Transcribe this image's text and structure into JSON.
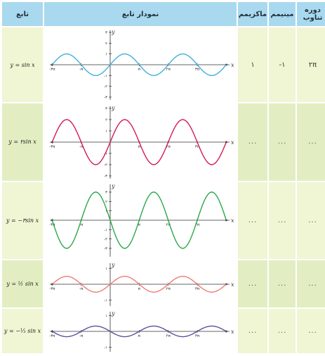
{
  "headers": {
    "func": "تابع",
    "graph": "نمودار تابع",
    "max": "ماکزیمم",
    "min": "مینیمم",
    "period": "دوره تناوب"
  },
  "axis": {
    "x_label": "x",
    "y_label": "y",
    "x_ticks": [
      "-۳π",
      "-π",
      "π",
      "۲π",
      "۳π"
    ],
    "y_ticks_row1": [
      "۳",
      "۲",
      "۱",
      "-۱",
      "-۲",
      "-۳"
    ],
    "y_ticks_row2": [
      "۳",
      "۲",
      "۱",
      "-۱",
      "-۲",
      "-۳"
    ],
    "y_ticks_row3": [
      "۳",
      "۲",
      "۱",
      "-۱",
      "-۲",
      "-۳"
    ],
    "y_ticks_row4": [
      "۱",
      "-۱"
    ],
    "y_ticks_row5": [
      "۱",
      "-۱"
    ]
  },
  "rows": [
    {
      "func": "y = sin x",
      "max": "۱",
      "min": "-۱",
      "period": "۲π",
      "color": "#3fb0dd",
      "amp": 1
    },
    {
      "func": "y = ۲sin x",
      "max": "...",
      "min": "...",
      "period": "...",
      "color": "#d6185a",
      "amp": 2
    },
    {
      "func": "y = −۳sin x",
      "max": "...",
      "min": "...",
      "period": "...",
      "color": "#2aa84a",
      "amp": -3
    },
    {
      "func": "y = ½ sin x",
      "max": "...",
      "min": "...",
      "period": "...",
      "color": "#f07a74",
      "amp": 0.5
    },
    {
      "func": "y = −⅓ sin x",
      "max": "...",
      "min": "...",
      "period": "...",
      "color": "#5b4fa0",
      "amp": -0.333
    }
  ]
}
